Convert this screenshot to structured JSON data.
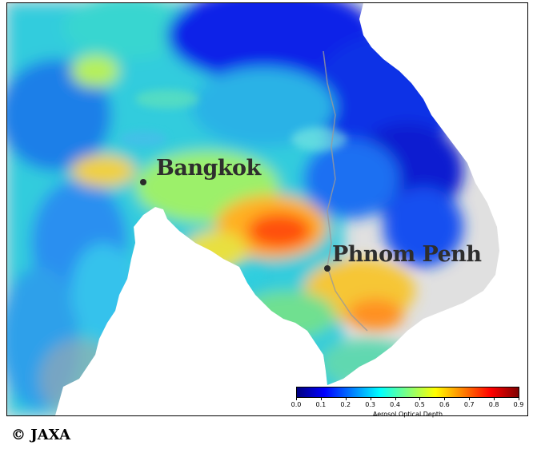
{
  "map": {
    "cities": [
      {
        "name": "Bangkok"
      },
      {
        "name": "Phnom Penh"
      }
    ]
  },
  "legend": {
    "title": "Aerosol Optical Depth",
    "ticks": [
      "0.0",
      "0.1",
      "0.2",
      "0.3",
      "0.4",
      "0.5",
      "0.6",
      "0.7",
      "0.8",
      "0.9"
    ],
    "range": [
      0.0,
      0.9
    ],
    "colormap": "jet",
    "colors": [
      "#00007f",
      "#0000ff",
      "#007fff",
      "#00ffff",
      "#7fff7f",
      "#ffff00",
      "#ff7f00",
      "#ff0000",
      "#7f0000"
    ]
  },
  "credit": "© JAXA",
  "colors": {
    "land_no_data": "#e0e0e0",
    "sea": "#ffffff"
  }
}
